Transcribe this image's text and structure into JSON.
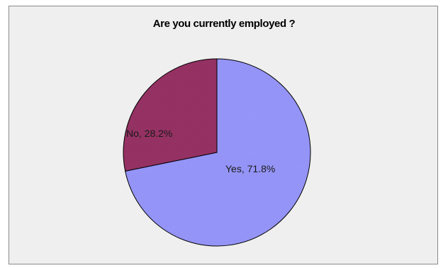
{
  "chart_data": {
    "type": "pie",
    "title": "Are you currently employed ?",
    "slices": [
      {
        "label": "Yes",
        "value": 71.8,
        "display": "Yes, 71.8%",
        "color": "#9999ff"
      },
      {
        "label": "No",
        "value": 28.2,
        "display": "No, 28.2%",
        "color": "#993366"
      }
    ],
    "legend": "none"
  }
}
